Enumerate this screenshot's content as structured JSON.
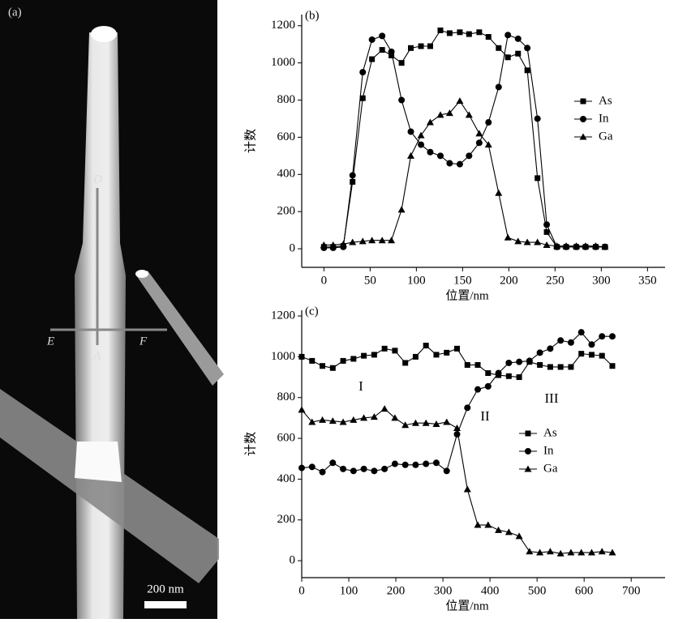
{
  "image_panel": {
    "label": "(a)",
    "markers": [
      "D",
      "E",
      "A",
      "F"
    ],
    "scale_bar": "200 nm"
  },
  "chart_data": [
    {
      "type": "line",
      "panel_label": "(b)",
      "xlabel": "位置/nm",
      "ylabel": "计数",
      "x": [
        0,
        10,
        21,
        31,
        42,
        52,
        63,
        73,
        84,
        94,
        105,
        115,
        126,
        136,
        147,
        157,
        168,
        178,
        189,
        199,
        210,
        220,
        231,
        241,
        252,
        262,
        273,
        283,
        294,
        304
      ],
      "series": [
        {
          "name": "As",
          "color": "#000000",
          "marker": "square",
          "values": [
            10,
            10,
            15,
            360,
            810,
            1020,
            1070,
            1040,
            1000,
            1080,
            1090,
            1090,
            1175,
            1160,
            1165,
            1155,
            1165,
            1140,
            1080,
            1030,
            1050,
            960,
            380,
            90,
            10,
            10,
            10,
            10,
            10,
            10
          ]
        },
        {
          "name": "In",
          "color": "#000000",
          "marker": "circle",
          "values": [
            5,
            5,
            10,
            395,
            950,
            1125,
            1145,
            1060,
            800,
            630,
            560,
            520,
            500,
            460,
            455,
            500,
            570,
            680,
            870,
            1150,
            1130,
            1080,
            700,
            130,
            10,
            10,
            10,
            10,
            10,
            10
          ]
        },
        {
          "name": "Ga",
          "color": "#000000",
          "marker": "triangle",
          "values": [
            20,
            20,
            25,
            35,
            40,
            45,
            45,
            45,
            210,
            500,
            610,
            680,
            720,
            730,
            795,
            720,
            620,
            560,
            300,
            60,
            40,
            35,
            35,
            20,
            15,
            15,
            15,
            15,
            15,
            10
          ]
        }
      ],
      "xlim": [
        -24,
        369
      ],
      "ylim": [
        -100,
        1260
      ],
      "xticks": [
        0,
        50,
        100,
        150,
        200,
        250,
        300,
        350
      ],
      "yticks": [
        0,
        200,
        400,
        600,
        800,
        1000,
        1200
      ],
      "legend": "right"
    },
    {
      "type": "line",
      "panel_label": "(c)",
      "xlabel": "位置/nm",
      "ylabel": "计数",
      "x": [
        0,
        22,
        44,
        66,
        88,
        110,
        132,
        154,
        176,
        198,
        220,
        242,
        264,
        286,
        308,
        330,
        352,
        374,
        396,
        418,
        440,
        462,
        484,
        506,
        528,
        550,
        572,
        594,
        616,
        638,
        660
      ],
      "series": [
        {
          "name": "As",
          "color": "#000000",
          "marker": "square",
          "values": [
            1000,
            980,
            955,
            945,
            980,
            990,
            1005,
            1010,
            1040,
            1030,
            970,
            1000,
            1055,
            1010,
            1020,
            1040,
            960,
            960,
            920,
            910,
            905,
            900,
            975,
            960,
            950,
            950,
            950,
            1015,
            1010,
            1005,
            955
          ]
        },
        {
          "name": "In",
          "color": "#000000",
          "marker": "circle",
          "values": [
            455,
            460,
            435,
            480,
            450,
            440,
            450,
            440,
            450,
            475,
            470,
            470,
            475,
            480,
            440,
            620,
            750,
            840,
            855,
            920,
            970,
            975,
            980,
            1020,
            1040,
            1080,
            1070,
            1120,
            1060,
            1100,
            1100
          ]
        },
        {
          "name": "Ga",
          "color": "#000000",
          "marker": "triangle",
          "values": [
            740,
            680,
            690,
            685,
            680,
            690,
            700,
            705,
            745,
            700,
            665,
            675,
            675,
            670,
            680,
            650,
            350,
            175,
            175,
            150,
            140,
            120,
            45,
            40,
            45,
            35,
            40,
            40,
            40,
            45,
            40
          ]
        }
      ],
      "xlim": [
        0,
        772
      ],
      "ylim": [
        -83,
        1228
      ],
      "xticks": [
        0,
        100,
        200,
        300,
        400,
        500,
        600,
        700
      ],
      "yticks": [
        0,
        200,
        400,
        600,
        800,
        1000,
        1200
      ],
      "annotations": [
        "I",
        "II",
        "III"
      ],
      "legend": "right"
    }
  ]
}
